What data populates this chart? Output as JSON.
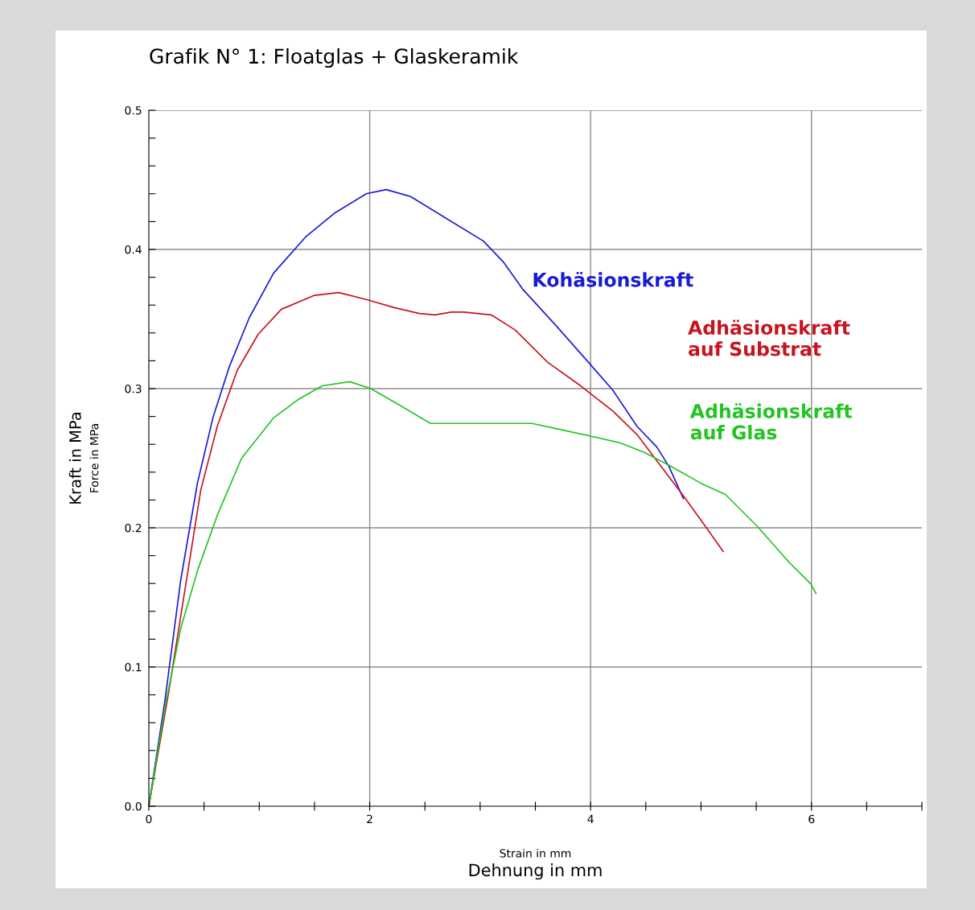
{
  "chart_data": {
    "type": "line",
    "title": "Grafik N° 1: Floatglas + Glaskeramik",
    "xlabel": "Dehnung in mm",
    "ylabel": "Kraft in MPa",
    "annotations": [
      "Strain in mm",
      "Force in MPa"
    ],
    "xlim": [
      0,
      7
    ],
    "ylim": [
      0,
      0.5
    ],
    "xticks": [
      0,
      {
        "value": 0.5,
        "label": null
      },
      {
        "value": 1,
        "label": null
      },
      {
        "value": 1.5,
        "label": null
      },
      2,
      {
        "value": 2.5,
        "label": null
      },
      {
        "value": 3,
        "label": null
      },
      {
        "value": 3.5,
        "label": null
      },
      4,
      {
        "value": 4.5,
        "label": null
      },
      {
        "value": 5,
        "label": null
      },
      {
        "value": 5.5,
        "label": null
      },
      6,
      {
        "value": 6.5,
        "label": null
      },
      {
        "value": 7,
        "label": null
      }
    ],
    "yticks": [
      {
        "value": 0,
        "label": "0.0"
      },
      {
        "value": 0.02,
        "label": null
      },
      {
        "value": 0.04,
        "label": null
      },
      {
        "value": 0.06,
        "label": null
      },
      {
        "value": 0.08,
        "label": null
      },
      0.1,
      {
        "value": 0.12,
        "label": null
      },
      {
        "value": 0.14,
        "label": null
      },
      {
        "value": 0.16,
        "label": null
      },
      {
        "value": 0.18,
        "label": null
      },
      0.2,
      {
        "value": 0.22,
        "label": null
      },
      {
        "value": 0.24,
        "label": null
      },
      {
        "value": 0.26,
        "label": null
      },
      {
        "value": 0.28,
        "label": null
      },
      0.3,
      {
        "value": 0.32,
        "label": null
      },
      {
        "value": 0.34,
        "label": null
      },
      {
        "value": 0.36,
        "label": null
      },
      {
        "value": 0.38,
        "label": null
      },
      0.4,
      {
        "value": 0.42,
        "label": null
      },
      {
        "value": 0.44,
        "label": null
      },
      {
        "value": 0.46,
        "label": null
      },
      {
        "value": 0.48,
        "label": null
      },
      0.5
    ],
    "grid": true,
    "legend": false,
    "marker": "none",
    "line_style": "solid",
    "series": [
      {
        "name": "Kohäsionskraft",
        "color": "#1a1ad6",
        "x": [
          0,
          0.146,
          0.29,
          0.44,
          0.58,
          0.73,
          0.91,
          1.13,
          1.42,
          1.68,
          1.97,
          2.15,
          2.37,
          2.7,
          3.03,
          3.21,
          3.39,
          3.69,
          3.98,
          4.2,
          4.42,
          4.6,
          4.71,
          4.84
        ],
        "values": [
          0,
          0.076,
          0.163,
          0.232,
          0.279,
          0.316,
          0.351,
          0.383,
          0.409,
          0.426,
          0.44,
          0.443,
          0.438,
          0.422,
          0.406,
          0.391,
          0.371,
          0.345,
          0.319,
          0.299,
          0.273,
          0.258,
          0.244,
          0.221
        ]
      },
      {
        "name": "Adhäsionskraft\nauf Substrat",
        "color": "#c8141e",
        "x": [
          0,
          0.18,
          0.33,
          0.47,
          0.62,
          0.8,
          0.99,
          1.2,
          1.5,
          1.72,
          1.97,
          2.23,
          2.45,
          2.59,
          2.74,
          2.85,
          3.1,
          3.32,
          3.61,
          3.91,
          4.2,
          4.42,
          4.64,
          4.85,
          5.04,
          5.2
        ],
        "values": [
          0,
          0.082,
          0.157,
          0.227,
          0.273,
          0.313,
          0.339,
          0.357,
          0.367,
          0.369,
          0.364,
          0.358,
          0.354,
          0.353,
          0.355,
          0.355,
          0.353,
          0.342,
          0.319,
          0.302,
          0.284,
          0.267,
          0.244,
          0.222,
          0.201,
          0.183
        ]
      },
      {
        "name": "Adhäsionskraft\nauf Glas",
        "color": "#22c422",
        "x": [
          0,
          0.146,
          0.29,
          0.44,
          0.62,
          0.84,
          1.13,
          1.35,
          1.57,
          1.82,
          2.01,
          2.23,
          2.55,
          2.74,
          3.03,
          3.47,
          3.76,
          4.05,
          4.27,
          4.49,
          4.71,
          5.0,
          5.22,
          5.51,
          5.8,
          5.99,
          6.04
        ],
        "values": [
          0,
          0.071,
          0.128,
          0.169,
          0.209,
          0.25,
          0.279,
          0.292,
          0.302,
          0.305,
          0.3,
          0.29,
          0.275,
          0.275,
          0.275,
          0.275,
          0.27,
          0.265,
          0.261,
          0.254,
          0.245,
          0.232,
          0.224,
          0.201,
          0.175,
          0.16,
          0.153
        ]
      }
    ]
  }
}
